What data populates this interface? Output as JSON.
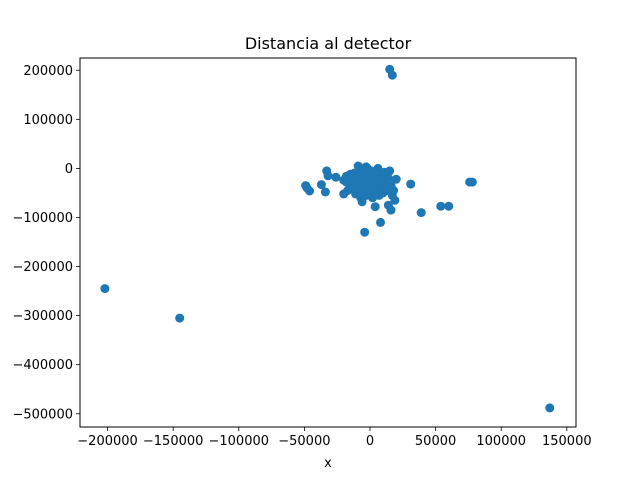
{
  "chart_data": {
    "type": "scatter",
    "title": "Distancia al detector",
    "xlabel": "x",
    "ylabel": "",
    "xlim": [
      -221000,
      157000
    ],
    "ylim": [
      -527000,
      225000
    ],
    "x_ticks": [
      -200000,
      -150000,
      -100000,
      -50000,
      0,
      50000,
      100000,
      150000
    ],
    "x_tick_labels": [
      "−200000",
      "−150000",
      "−100000",
      "−50000",
      "0",
      "50000",
      "100000",
      "150000"
    ],
    "y_ticks": [
      200000,
      100000,
      0,
      -100000,
      -200000,
      -300000,
      -400000,
      -500000
    ],
    "y_tick_labels": [
      "200000",
      "100000",
      "0",
      "−100000",
      "−200000",
      "−300000",
      "−400000",
      "−500000"
    ],
    "grid": false,
    "marker_color": "#1f77b4",
    "series": [
      {
        "name": "",
        "points": [
          [
            15000,
            202000
          ],
          [
            17000,
            190000
          ],
          [
            -202000,
            -245000
          ],
          [
            -145000,
            -305000
          ],
          [
            137000,
            -488000
          ],
          [
            -49000,
            -35000
          ],
          [
            -48000,
            -40000
          ],
          [
            -46000,
            -46000
          ],
          [
            -37000,
            -33000
          ],
          [
            -34000,
            -48000
          ],
          [
            -33000,
            -5000
          ],
          [
            -32000,
            -15000
          ],
          [
            -26000,
            -18000
          ],
          [
            -20000,
            -24000
          ],
          [
            -18000,
            -28000
          ],
          [
            -17000,
            -45000
          ],
          [
            -16000,
            -30000
          ],
          [
            -14000,
            -20000
          ],
          [
            -13000,
            -38000
          ],
          [
            -12000,
            -10000
          ],
          [
            -11000,
            -52000
          ],
          [
            -10000,
            -42000
          ],
          [
            -9000,
            -5000
          ],
          [
            -9000,
            5000
          ],
          [
            -8000,
            -22000
          ],
          [
            -8000,
            -35000
          ],
          [
            -7000,
            -60000
          ],
          [
            -7000,
            -15000
          ],
          [
            -6000,
            -68000
          ],
          [
            -6000,
            -28000
          ],
          [
            -5000,
            -45000
          ],
          [
            -5000,
            -8000
          ],
          [
            -4000,
            -130000
          ],
          [
            -4000,
            -20000
          ],
          [
            -3000,
            -40000
          ],
          [
            -3000,
            -55000
          ],
          [
            -2000,
            -30000
          ],
          [
            -2000,
            0
          ],
          [
            -1000,
            -12000
          ],
          [
            -1000,
            -48000
          ],
          [
            0,
            -25000
          ],
          [
            0,
            -35000
          ],
          [
            1000,
            -5000
          ],
          [
            1000,
            -42000
          ],
          [
            2000,
            -18000
          ],
          [
            2000,
            -50000
          ],
          [
            3000,
            -28000
          ],
          [
            3000,
            -8000
          ],
          [
            4000,
            -38000
          ],
          [
            4000,
            -78000
          ],
          [
            5000,
            -15000
          ],
          [
            5000,
            -25000
          ],
          [
            6000,
            -45000
          ],
          [
            6000,
            0
          ],
          [
            7000,
            -30000
          ],
          [
            7000,
            -55000
          ],
          [
            8000,
            -20000
          ],
          [
            8000,
            -110000
          ],
          [
            9000,
            -35000
          ],
          [
            9000,
            -10000
          ],
          [
            10000,
            -50000
          ],
          [
            10000,
            -25000
          ],
          [
            11000,
            -40000
          ],
          [
            12000,
            -15000
          ],
          [
            12000,
            -30000
          ],
          [
            13000,
            -45000
          ],
          [
            14000,
            -75000
          ],
          [
            14000,
            -20000
          ],
          [
            15000,
            -5000
          ],
          [
            16000,
            -85000
          ],
          [
            16000,
            -35000
          ],
          [
            17000,
            -55000
          ],
          [
            18000,
            -45000
          ],
          [
            19000,
            -65000
          ],
          [
            20000,
            -22000
          ],
          [
            -15000,
            -12000
          ],
          [
            -12000,
            -28000
          ],
          [
            -10000,
            -18000
          ],
          [
            -6000,
            -3000
          ],
          [
            -2000,
            -15000
          ],
          [
            0,
            -8000
          ],
          [
            3000,
            -20000
          ],
          [
            6000,
            -12000
          ],
          [
            9000,
            -22000
          ],
          [
            11000,
            -8000
          ],
          [
            13000,
            -30000
          ],
          [
            -3000,
            3000
          ],
          [
            -20000,
            -52000
          ],
          [
            -18000,
            -16000
          ],
          [
            -10000,
            -33000
          ],
          [
            2000,
            -60000
          ],
          [
            31000,
            -32000
          ],
          [
            39000,
            -90000
          ],
          [
            54000,
            -77000
          ],
          [
            60000,
            -77000
          ],
          [
            76000,
            -28000
          ],
          [
            78000,
            -28000
          ]
        ]
      }
    ]
  }
}
